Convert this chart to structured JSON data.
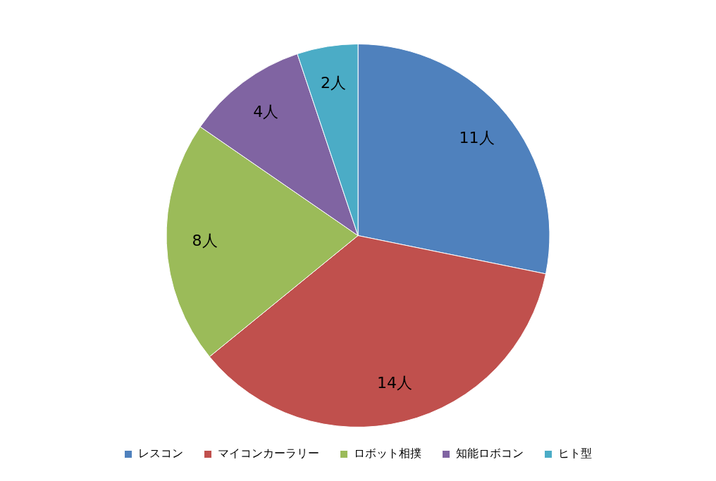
{
  "chart_data": {
    "type": "pie",
    "categories": [
      "レスコン",
      "マイコンカーラリー",
      "ロボット相撲",
      "知能ロボコン",
      "ヒト型"
    ],
    "values": [
      11,
      14,
      8,
      4,
      2
    ],
    "colors": [
      "#4f81bd",
      "#c0504d",
      "#9bbb59",
      "#8064a2",
      "#4bacc6"
    ],
    "value_labels": [
      "11人",
      "14人",
      "8人",
      "4人",
      "2人"
    ],
    "legend": "bottom"
  }
}
